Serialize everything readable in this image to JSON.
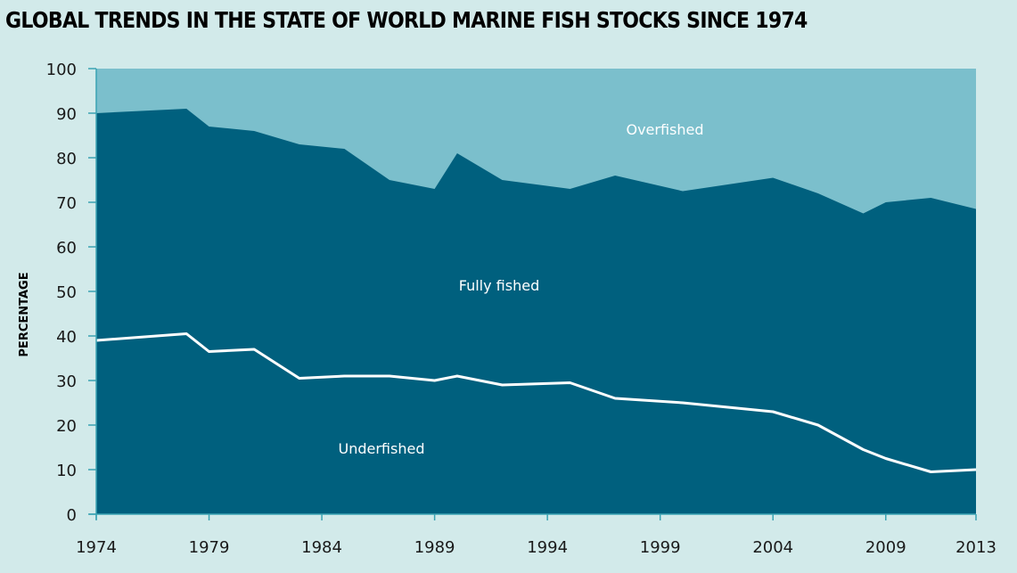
{
  "title": "GLOBAL TRENDS IN THE STATE OF WORLD MARINE FISH STOCKS SINCE 1974",
  "colors": {
    "background": "#d2eaea",
    "overfished": "#7bbfcc",
    "fully_fished": "#00607e",
    "underfished_line": "#ffffff",
    "axis": "#3aa3b3"
  },
  "chart_data": {
    "type": "area",
    "title": "GLOBAL TRENDS IN THE STATE OF WORLD MARINE FISH STOCKS SINCE 1974",
    "xlabel": "",
    "ylabel": "PERCENTAGE",
    "xlim": [
      1974,
      2013
    ],
    "ylim": [
      0,
      100
    ],
    "x_ticks": [
      "1974",
      "1979",
      "1984",
      "1989",
      "1994",
      "1999",
      "2004",
      "2009",
      "2013"
    ],
    "y_ticks": [
      "0",
      "10",
      "20",
      "30",
      "40",
      "50",
      "60",
      "70",
      "80",
      "90",
      "100"
    ],
    "x": [
      1974,
      1978,
      1979,
      1981,
      1983,
      1985,
      1987,
      1989,
      1990,
      1992,
      1995,
      1997,
      2000,
      2004,
      2006,
      2008,
      2009,
      2011,
      2013
    ],
    "series": [
      {
        "name": "Underfished",
        "values": [
          39,
          40.5,
          36.5,
          37,
          30.5,
          31,
          31,
          30,
          31,
          29,
          29.5,
          26,
          25,
          23,
          20,
          14.5,
          12.5,
          9.5,
          10
        ]
      },
      {
        "name": "Fully fished",
        "values": [
          51,
          50.5,
          50.5,
          49,
          52.5,
          51,
          44,
          43,
          50,
          46,
          43.5,
          50,
          47.5,
          52.5,
          52,
          53,
          57.5,
          61.5,
          58.5
        ]
      },
      {
        "name": "Overfished",
        "values": [
          10,
          9,
          13,
          14,
          17,
          18,
          25,
          27,
          19,
          25,
          27,
          24,
          27.5,
          24.5,
          28,
          32.5,
          30,
          29,
          31.5
        ]
      }
    ],
    "annotations": [
      "Overfished",
      "Fully fished",
      "Underfished"
    ],
    "grid": false,
    "legend": "none"
  }
}
